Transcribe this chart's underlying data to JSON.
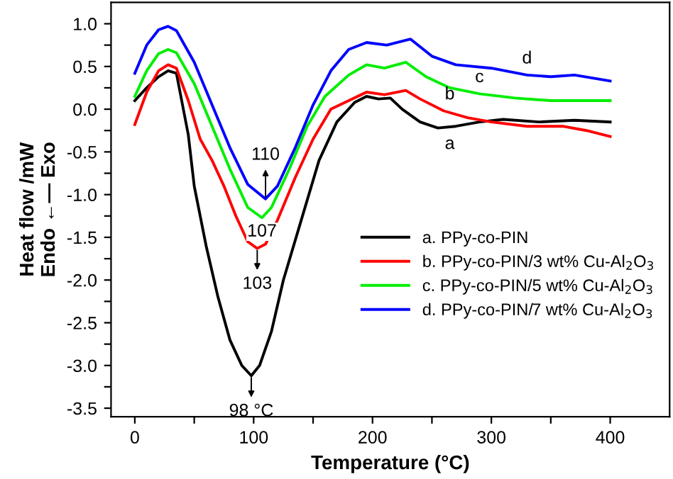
{
  "chart_data": {
    "type": "line",
    "xlabel": "Temperature (°C)",
    "ylabel": "Heat flow /mW\nEndo ←— Exo",
    "xlim": [
      -20,
      450
    ],
    "ylim": [
      -3.6,
      1.25
    ],
    "xticks": [
      0,
      {
        "value": 50,
        "label": null
      },
      100,
      {
        "value": 150,
        "label": null
      },
      200,
      {
        "value": 250,
        "label": null
      },
      300,
      {
        "value": 350,
        "label": null
      },
      400
    ],
    "yticks": [
      -3.5,
      {
        "value": -3.25,
        "label": null
      },
      {
        "value": -3,
        "label": "-3.0"
      },
      {
        "value": -2.75,
        "label": null
      },
      -2.5,
      {
        "value": -2.25,
        "label": null
      },
      {
        "value": -2,
        "label": "-2.0"
      },
      {
        "value": -1.75,
        "label": null
      },
      -1.5,
      {
        "value": -1.25,
        "label": null
      },
      {
        "value": -1,
        "label": "-1.0"
      },
      {
        "value": -0.75,
        "label": null
      },
      -0.5,
      {
        "value": -0.25,
        "label": null
      },
      {
        "value": 0,
        "label": "0.0"
      },
      {
        "value": 0.25,
        "label": null
      },
      0.5,
      {
        "value": 0.75,
        "label": null
      },
      {
        "value": 1,
        "label": "1.0"
      }
    ],
    "legend": "bottom right",
    "grid": false,
    "marker": "none",
    "line_style": "solid",
    "series": [
      {
        "name": "a. PPy-co-PIN",
        "color": "#000000",
        "x": [
          0,
          10,
          20,
          28,
          35,
          45,
          50,
          60,
          70,
          80,
          90,
          98,
          105,
          115,
          125,
          140,
          155,
          170,
          185,
          195,
          205,
          215,
          225,
          240,
          255,
          270,
          290,
          310,
          340,
          370,
          400
        ],
        "values": [
          0.1,
          0.25,
          0.38,
          0.45,
          0.42,
          -0.3,
          -0.9,
          -1.6,
          -2.2,
          -2.7,
          -3.0,
          -3.12,
          -3.0,
          -2.6,
          -2.0,
          -1.3,
          -0.6,
          -0.15,
          0.08,
          0.15,
          0.12,
          0.13,
          0.0,
          -0.15,
          -0.22,
          -0.2,
          -0.15,
          -0.12,
          -0.15,
          -0.13,
          -0.15
        ]
      },
      {
        "name": "b. PPy-co-PIN/3 wt% Cu-Al$_{2}$O$_{3}$",
        "color": "#ff0000",
        "x": [
          0,
          10,
          20,
          28,
          35,
          45,
          55,
          65,
          75,
          85,
          95,
          103,
          110,
          120,
          135,
          150,
          165,
          180,
          195,
          210,
          228,
          240,
          260,
          280,
          300,
          330,
          360,
          380,
          400
        ],
        "values": [
          -0.18,
          0.2,
          0.45,
          0.52,
          0.48,
          0.1,
          -0.35,
          -0.6,
          -0.9,
          -1.25,
          -1.55,
          -1.63,
          -1.58,
          -1.3,
          -0.8,
          -0.35,
          0.0,
          0.1,
          0.2,
          0.17,
          0.22,
          0.12,
          -0.02,
          -0.1,
          -0.15,
          -0.2,
          -0.2,
          -0.25,
          -0.32
        ]
      },
      {
        "name": "c. PPy-co-PIN/5 wt% Cu-Al$_{2}$O$_{3}$",
        "color": "#00ee00",
        "x": [
          0,
          10,
          20,
          28,
          35,
          50,
          65,
          80,
          95,
          107,
          115,
          130,
          145,
          160,
          180,
          195,
          210,
          228,
          245,
          265,
          290,
          320,
          350,
          400
        ],
        "values": [
          0.15,
          0.45,
          0.65,
          0.7,
          0.66,
          0.3,
          -0.2,
          -0.7,
          -1.15,
          -1.27,
          -1.15,
          -0.7,
          -0.2,
          0.15,
          0.4,
          0.52,
          0.48,
          0.55,
          0.38,
          0.25,
          0.18,
          0.13,
          0.1,
          0.1
        ]
      },
      {
        "name": "d. PPy-co-PIN/7 wt% Cu-Al$_{2}$O$_{3}$",
        "color": "#0000ff",
        "x": [
          0,
          10,
          20,
          28,
          35,
          50,
          65,
          80,
          95,
          110,
          120,
          135,
          150,
          165,
          180,
          195,
          212,
          232,
          250,
          270,
          300,
          330,
          350,
          370,
          400
        ],
        "values": [
          0.42,
          0.75,
          0.93,
          0.97,
          0.92,
          0.55,
          0.05,
          -0.45,
          -0.88,
          -1.05,
          -0.9,
          -0.45,
          0.05,
          0.45,
          0.7,
          0.78,
          0.75,
          0.82,
          0.62,
          0.52,
          0.48,
          0.4,
          0.38,
          0.4,
          0.33
        ]
      }
    ],
    "annotations": [
      {
        "text": "110",
        "x": 110,
        "y": -1.05
      },
      {
        "text": "107",
        "x": 107,
        "y": -1.27
      },
      {
        "text": "103",
        "x": 103,
        "y": -1.63
      },
      {
        "text": "98 °C",
        "x": 98,
        "y": -3.12
      },
      {
        "text": "a",
        "x": 265,
        "y": -0.2
      },
      {
        "text": "b",
        "x": 265,
        "y": -0.02
      },
      {
        "text": "c",
        "x": 290,
        "y": 0.18
      },
      {
        "text": "d",
        "x": 330,
        "y": 0.4
      }
    ]
  }
}
